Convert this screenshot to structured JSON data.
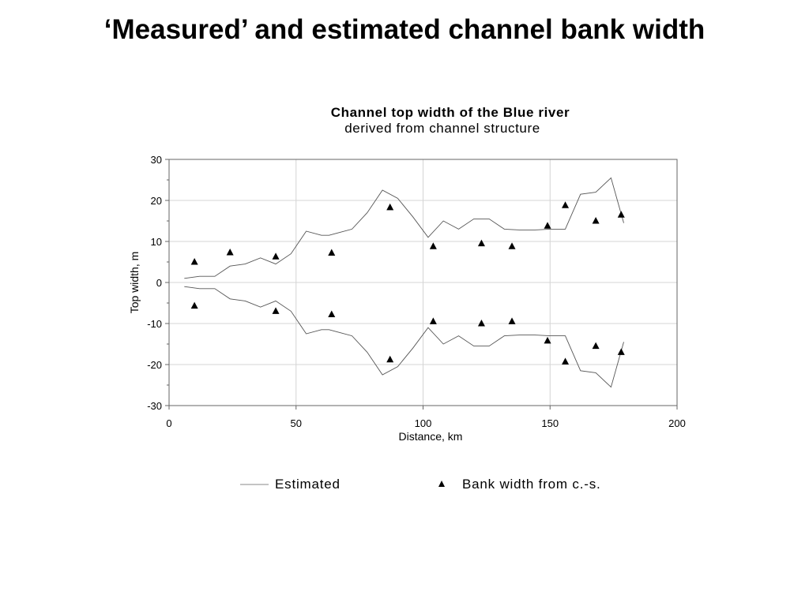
{
  "slide": {
    "title": "‘Measured’ and estimated channel bank width"
  },
  "chart_data": {
    "type": "line",
    "title": "Channel top width of the Blue river",
    "subtitle": "derived from channel structure",
    "xlabel": "Distance, km",
    "ylabel": "Top width, m",
    "xlim": [
      0,
      200
    ],
    "ylim": [
      -30,
      30
    ],
    "xticks": [
      0,
      50,
      100,
      150,
      200
    ],
    "yticks": [
      30,
      20,
      10,
      0,
      -10,
      -20,
      -30
    ],
    "grid": true,
    "legend_position": "bottom",
    "series": [
      {
        "name": "Estimated",
        "style": "line",
        "color": "#555555",
        "x": [
          6,
          12,
          18,
          24,
          30,
          36,
          42,
          48,
          54,
          60,
          63,
          66,
          72,
          78,
          84,
          90,
          96,
          102,
          108,
          114,
          120,
          126,
          132,
          138,
          144,
          150,
          156,
          162,
          168,
          174,
          179
        ],
        "y": [
          1,
          1.5,
          1.5,
          4,
          4.5,
          6,
          4.5,
          7,
          12.5,
          11.5,
          11.5,
          12,
          13,
          17,
          22.5,
          20.5,
          16,
          11,
          15,
          13,
          15.5,
          15.5,
          13,
          12.8,
          12.8,
          13,
          13,
          21.5,
          22,
          25.5,
          14.5
        ]
      },
      {
        "name": "",
        "style": "line",
        "color": "#555555",
        "x": [
          6,
          12,
          18,
          24,
          30,
          36,
          42,
          48,
          54,
          60,
          63,
          66,
          72,
          78,
          84,
          90,
          96,
          102,
          108,
          114,
          120,
          126,
          132,
          138,
          144,
          150,
          156,
          162,
          168,
          174,
          179
        ],
        "y": [
          -1,
          -1.5,
          -1.5,
          -4,
          -4.5,
          -6,
          -4.5,
          -7,
          -12.5,
          -11.5,
          -11.5,
          -12,
          -13,
          -17,
          -22.5,
          -20.5,
          -16,
          -11,
          -15,
          -13,
          -15.5,
          -15.5,
          -13,
          -12.8,
          -12.8,
          -13,
          -13,
          -21.5,
          -22,
          -25.5,
          -14.5
        ]
      },
      {
        "name": "Bank width from c.-s.",
        "style": "triangle",
        "color": "#000000",
        "x": [
          10,
          24,
          42,
          64,
          87,
          104,
          123,
          135,
          149,
          156,
          168,
          178,
          10,
          42,
          64,
          87,
          104,
          123,
          135,
          149,
          156,
          168,
          178
        ],
        "y": [
          5,
          7.3,
          6.3,
          7.2,
          18.3,
          8.8,
          9.5,
          8.8,
          13.8,
          18.8,
          15,
          16.5,
          -5.7,
          -7,
          -7.8,
          -18.8,
          -9.5,
          -10,
          -9.5,
          -14.2,
          -19.3,
          -15.5,
          -17
        ]
      }
    ],
    "legend": [
      {
        "label": "Estimated",
        "marker": "line"
      },
      {
        "label": "Bank width from c.-s.",
        "marker": "triangle"
      }
    ]
  }
}
